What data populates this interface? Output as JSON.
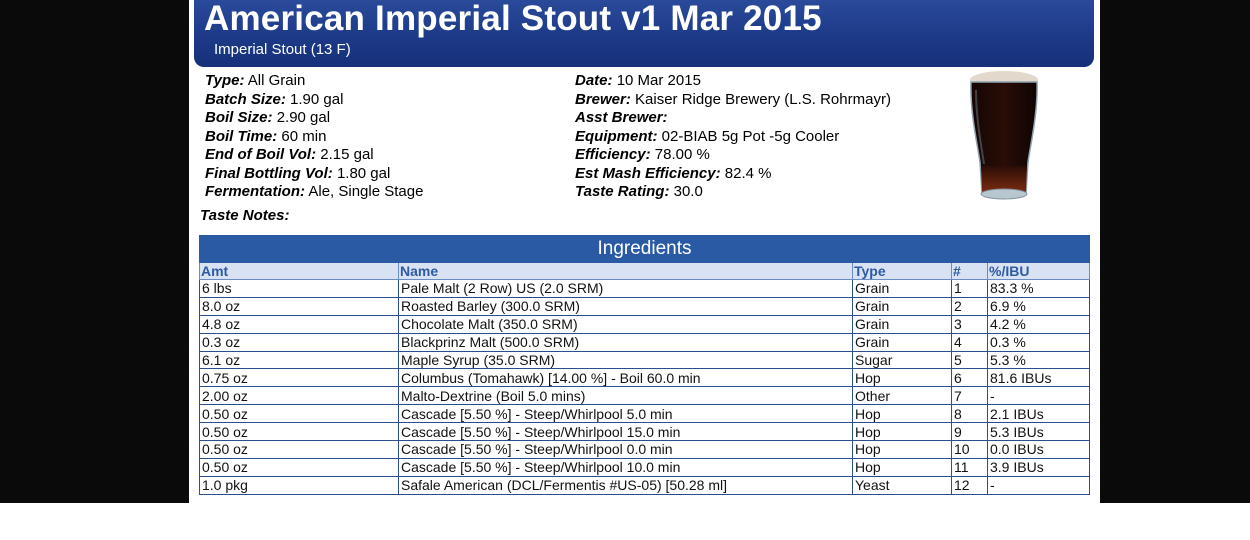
{
  "header": {
    "title": "American Imperial Stout v1 Mar 2015",
    "subtitle": "Imperial Stout (13 F)"
  },
  "info_left": [
    {
      "label": "Type:",
      "value": "All Grain"
    },
    {
      "label": "Batch Size:",
      "value": "1.90 gal"
    },
    {
      "label": "Boil Size:",
      "value": "2.90 gal"
    },
    {
      "label": "Boil Time:",
      "value": "60 min"
    },
    {
      "label": "End of Boil Vol:",
      "value": "2.15 gal"
    },
    {
      "label": "Final Bottling Vol:",
      "value": "1.80 gal"
    },
    {
      "label": "Fermentation:",
      "value": "Ale, Single Stage"
    }
  ],
  "info_right": [
    {
      "label": "Date:",
      "value": "10 Mar 2015"
    },
    {
      "label": "Brewer:",
      "value": "Kaiser Ridge Brewery (L.S. Rohrmayr)"
    },
    {
      "label": "Asst Brewer:",
      "value": ""
    },
    {
      "label": "Equipment:",
      "value": "02-BIAB 5g Pot -5g Cooler"
    },
    {
      "label": "Efficiency:",
      "value": "78.00 %"
    },
    {
      "label": "Est Mash Efficiency:",
      "value": "82.4 %"
    },
    {
      "label": "Taste Rating:",
      "value": "30.0"
    }
  ],
  "taste_notes_label": "Taste Notes:",
  "ingredients": {
    "title": "Ingredients",
    "columns": [
      "Amt",
      "Name",
      "Type",
      "#",
      "%/IBU"
    ],
    "rows": [
      [
        "6 lbs",
        "Pale Malt (2 Row) US (2.0 SRM)",
        "Grain",
        "1",
        "83.3 %"
      ],
      [
        "8.0 oz",
        "Roasted Barley (300.0 SRM)",
        "Grain",
        "2",
        "6.9 %"
      ],
      [
        "4.8 oz",
        "Chocolate Malt (350.0 SRM)",
        "Grain",
        "3",
        "4.2 %"
      ],
      [
        "0.3 oz",
        "Blackprinz Malt (500.0 SRM)",
        "Grain",
        "4",
        "0.3 %"
      ],
      [
        "6.1 oz",
        "Maple Syrup (35.0 SRM)",
        "Sugar",
        "5",
        "5.3 %"
      ],
      [
        "0.75 oz",
        "Columbus (Tomahawk) [14.00 %] - Boil 60.0 min",
        "Hop",
        "6",
        "81.6 IBUs"
      ],
      [
        "2.00 oz",
        "Malto-Dextrine (Boil 5.0 mins)",
        "Other",
        "7",
        "-"
      ],
      [
        "0.50 oz",
        "Cascade [5.50 %] - Steep/Whirlpool 5.0 min",
        "Hop",
        "8",
        "2.1 IBUs"
      ],
      [
        "0.50 oz",
        "Cascade [5.50 %] - Steep/Whirlpool 15.0 min",
        "Hop",
        "9",
        "5.3 IBUs"
      ],
      [
        "0.50 oz",
        "Cascade [5.50 %] - Steep/Whirlpool 0.0 min",
        "Hop",
        "10",
        "0.0 IBUs"
      ],
      [
        "0.50 oz",
        "Cascade [5.50 %] - Steep/Whirlpool 10.0 min",
        "Hop",
        "11",
        "3.9 IBUs"
      ],
      [
        "1.0 pkg",
        "Safale American (DCL/Fermentis #US-05) [50.28 ml]",
        "Yeast",
        "12",
        "-"
      ]
    ]
  },
  "icons": {
    "beer": "beer-glass-icon"
  },
  "colors": {
    "header": "#1d3a88",
    "table_title": "#2b5aa5",
    "col_head_bg": "#d8e2f2",
    "col_head_text": "#2f5aa3"
  }
}
